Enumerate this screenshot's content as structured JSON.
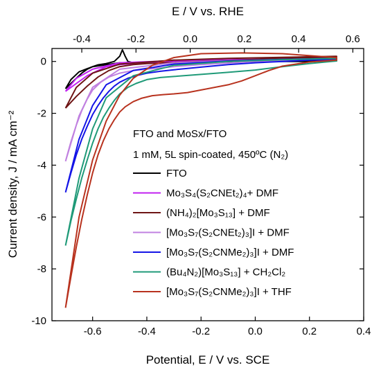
{
  "chart_data": {
    "type": "line",
    "title": "",
    "xlabel": "Potential, E / V vs. SCE",
    "ylabel": "Current density, J / mA cm⁻²",
    "x2label": "E / V vs. RHE",
    "xlim": [
      -0.75,
      0.4
    ],
    "ylim": [
      -10,
      0.5
    ],
    "x2lim": [
      -0.51,
      0.64
    ],
    "xticks": [
      "-0.6",
      "-0.4",
      "-0.2",
      "0.0",
      "0.2",
      "0.4"
    ],
    "x2ticks": [
      "-0.4",
      "-0.2",
      "0.0",
      "0.2",
      "0.4",
      "0.6"
    ],
    "yticks": [
      "0",
      "-2",
      "-4",
      "-6",
      "-8",
      "-10"
    ],
    "legend_title_line1": "FTO and MoSx/FTO",
    "legend_title_line2": "1 mM, 5L spin-coated, 450ºC (N₂)",
    "legend_position": "center-right",
    "grid": false,
    "series": [
      {
        "name": "FTO",
        "color": "#000000",
        "x": [
          -0.7,
          -0.68,
          -0.66,
          -0.64,
          -0.62,
          -0.6,
          -0.58,
          -0.55,
          -0.52,
          -0.5,
          -0.49,
          -0.48,
          -0.47,
          -0.45,
          -0.4,
          -0.3,
          -0.2,
          -0.1,
          0.0,
          0.1,
          0.2,
          0.3
        ],
        "y": [
          -1.05,
          -0.85,
          -0.65,
          -0.45,
          -0.3,
          -0.2,
          -0.13,
          -0.08,
          0.0,
          0.2,
          0.45,
          0.2,
          0.0,
          -0.05,
          -0.04,
          -0.03,
          -0.02,
          -0.01,
          0.0,
          0.0,
          0.0,
          0.02
        ],
        "return_x": [
          0.3,
          0.1,
          -0.1,
          -0.3,
          -0.5,
          -0.6,
          -0.65,
          -0.68,
          -0.7
        ],
        "return_y": [
          0.05,
          0.04,
          0.02,
          0.0,
          -0.05,
          -0.2,
          -0.4,
          -0.7,
          -1.05
        ]
      },
      {
        "name": "Mo₃S₄(S₂CNEt₂)₄+ DMF",
        "color": "#c020f0",
        "x": [
          -0.7,
          -0.66,
          -0.62,
          -0.58,
          -0.55,
          -0.5,
          -0.45,
          -0.4,
          -0.3,
          -0.2,
          -0.1,
          0.0,
          0.1,
          0.2,
          0.3
        ],
        "y": [
          -1.15,
          -0.85,
          -0.55,
          -0.35,
          -0.2,
          -0.12,
          -0.08,
          -0.05,
          -0.02,
          0.0,
          0.0,
          0.05,
          0.07,
          0.09,
          0.1
        ],
        "return_x": [
          0.3,
          0.1,
          -0.1,
          -0.3,
          -0.5,
          -0.6,
          -0.66,
          -0.7
        ],
        "return_y": [
          0.12,
          0.1,
          0.07,
          0.03,
          -0.05,
          -0.3,
          -0.65,
          -1.15
        ]
      },
      {
        "name": "(NH₄)₂[Mo₃S₁₃] + DMF",
        "color": "#6e1414",
        "x": [
          -0.7,
          -0.66,
          -0.62,
          -0.58,
          -0.54,
          -0.5,
          -0.45,
          -0.4,
          -0.3,
          -0.2,
          -0.1,
          0.0,
          0.1,
          0.2,
          0.3
        ],
        "y": [
          -1.8,
          -1.35,
          -0.95,
          -0.6,
          -0.35,
          -0.2,
          -0.12,
          -0.08,
          -0.04,
          0.0,
          0.04,
          0.08,
          0.12,
          0.15,
          0.17
        ],
        "return_x": [
          0.3,
          0.1,
          -0.1,
          -0.3,
          -0.5,
          -0.6,
          -0.66,
          -0.7
        ],
        "return_y": [
          0.2,
          0.16,
          0.12,
          0.05,
          -0.1,
          -0.45,
          -1.0,
          -1.8
        ]
      },
      {
        "name": "[Mo₃S₇(S₂CNEt₂)₃]I + DMF",
        "color": "#c080e0",
        "x": [
          -0.7,
          -0.68,
          -0.66,
          -0.64,
          -0.62,
          -0.6,
          -0.57,
          -0.54,
          -0.5,
          -0.45,
          -0.4,
          -0.3,
          -0.2,
          -0.1,
          0.0,
          0.1,
          0.2,
          0.3
        ],
        "y": [
          -3.85,
          -3.1,
          -2.45,
          -1.9,
          -1.45,
          -1.1,
          -0.8,
          -0.6,
          -0.45,
          -0.35,
          -0.3,
          -0.2,
          -0.12,
          -0.06,
          0.0,
          0.04,
          0.07,
          0.09
        ],
        "return_x": [
          0.3,
          0.1,
          -0.1,
          -0.3,
          -0.5,
          -0.6,
          -0.65,
          -0.7
        ],
        "return_y": [
          0.12,
          0.08,
          0.03,
          -0.05,
          -0.3,
          -1.0,
          -2.1,
          -3.85
        ]
      },
      {
        "name": "[Mo₃S₇(S₂CNMe₂)₃]I + DMF",
        "color": "#1414e6",
        "x": [
          -0.7,
          -0.68,
          -0.66,
          -0.64,
          -0.62,
          -0.6,
          -0.58,
          -0.56,
          -0.54,
          -0.52,
          -0.5,
          -0.47,
          -0.44,
          -0.4,
          -0.35,
          -0.3,
          -0.2,
          -0.1,
          0.0,
          0.1,
          0.2,
          0.3
        ],
        "y": [
          -5.05,
          -4.3,
          -3.6,
          -3.0,
          -2.5,
          -2.05,
          -1.7,
          -1.4,
          -1.15,
          -0.95,
          -0.8,
          -0.65,
          -0.55,
          -0.45,
          -0.38,
          -0.32,
          -0.22,
          -0.12,
          -0.05,
          0.0,
          0.05,
          0.08
        ],
        "return_x": [
          0.3,
          0.1,
          -0.1,
          -0.3,
          -0.45,
          -0.55,
          -0.6,
          -0.65,
          -0.7
        ],
        "return_y": [
          0.12,
          0.08,
          0.02,
          -0.1,
          -0.35,
          -0.9,
          -1.7,
          -3.0,
          -5.05
        ]
      },
      {
        "name": "(Bu₄N₂)[Mo₃S₁₃] + CH₂Cl₂",
        "color": "#1f9a78",
        "x": [
          -0.7,
          -0.68,
          -0.66,
          -0.64,
          -0.62,
          -0.6,
          -0.58,
          -0.56,
          -0.54,
          -0.52,
          -0.5,
          -0.47,
          -0.44,
          -0.4,
          -0.35,
          -0.3,
          -0.2,
          -0.1,
          0.0,
          0.1,
          0.2,
          0.3
        ],
        "y": [
          -7.1,
          -6.15,
          -5.3,
          -4.5,
          -3.8,
          -3.15,
          -2.6,
          -2.15,
          -1.8,
          -1.5,
          -1.25,
          -1.0,
          -0.85,
          -0.7,
          -0.62,
          -0.58,
          -0.5,
          -0.42,
          -0.33,
          -0.2,
          -0.08,
          0.02
        ],
        "return_x": [
          0.3,
          0.1,
          -0.1,
          -0.3,
          -0.45,
          -0.55,
          -0.6,
          -0.65,
          -0.7
        ],
        "return_y": [
          0.12,
          0.07,
          0.0,
          -0.15,
          -0.55,
          -1.4,
          -2.6,
          -4.5,
          -7.1
        ]
      },
      {
        "name": "[Mo₃S₇(S₂CNMe₂)₃]I + THF",
        "color": "#b8321e",
        "x": [
          -0.7,
          -0.68,
          -0.66,
          -0.64,
          -0.62,
          -0.6,
          -0.58,
          -0.56,
          -0.54,
          -0.52,
          -0.5,
          -0.48,
          -0.45,
          -0.42,
          -0.38,
          -0.34,
          -0.3,
          -0.25,
          -0.2,
          -0.15,
          -0.1,
          -0.05,
          0.0,
          0.05,
          0.1,
          0.2,
          0.3
        ],
        "y": [
          -9.5,
          -8.3,
          -7.15,
          -6.1,
          -5.15,
          -4.3,
          -3.6,
          -3.05,
          -2.6,
          -2.25,
          -1.95,
          -1.75,
          -1.55,
          -1.42,
          -1.32,
          -1.28,
          -1.25,
          -1.2,
          -1.1,
          -1.0,
          -0.9,
          -0.75,
          -0.55,
          -0.35,
          -0.18,
          -0.02,
          0.05
        ],
        "return_x": [
          0.3,
          0.1,
          -0.05,
          -0.2,
          -0.3,
          -0.38,
          -0.45,
          -0.5,
          -0.55,
          -0.6,
          -0.65,
          -0.7
        ],
        "return_y": [
          0.15,
          0.3,
          0.33,
          0.3,
          0.15,
          -0.15,
          -0.65,
          -1.3,
          -2.3,
          -3.8,
          -6.0,
          -9.5
        ]
      }
    ]
  }
}
